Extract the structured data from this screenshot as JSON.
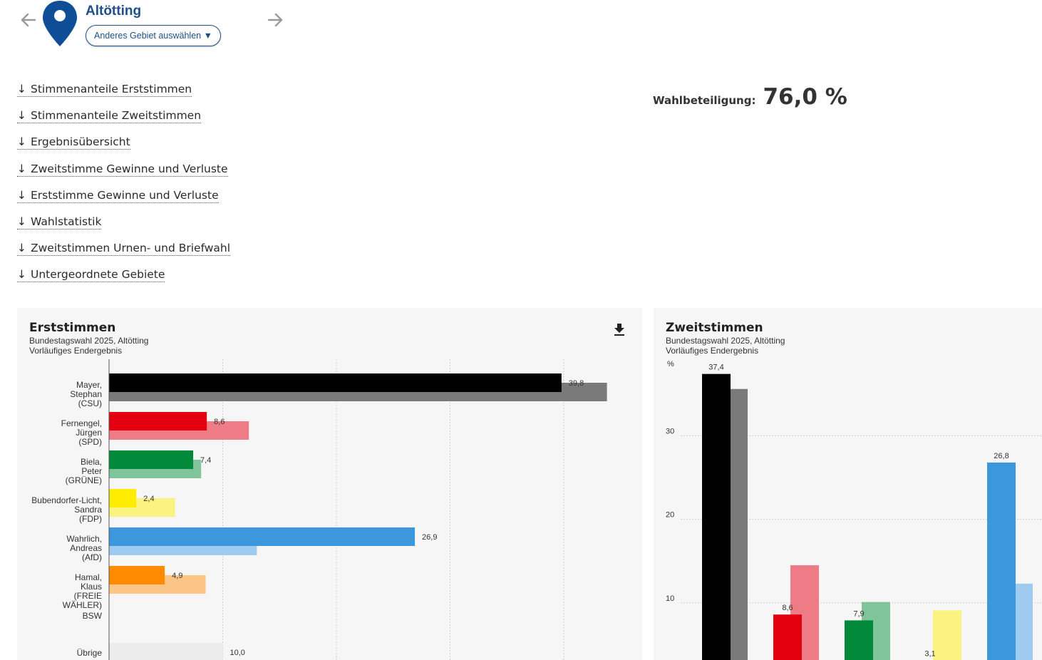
{
  "header": {
    "area_name": "Altötting",
    "select_area_label": "Anderes Gebiet auswählen ▼"
  },
  "jump_links": [
    {
      "arrow": "↓",
      "label": "Stimmenanteile Erststimmen"
    },
    {
      "arrow": "↓",
      "label": "Stimmenanteile Zweitstimmen"
    },
    {
      "arrow": "↓",
      "label": "Ergebnisübersicht"
    },
    {
      "arrow": "↓",
      "label": "Zweitstimme Gewinne und Verluste"
    },
    {
      "arrow": "↓",
      "label": "Erststimme Gewinne und Verluste"
    },
    {
      "arrow": "↓",
      "label": "Wahlstatistik"
    },
    {
      "arrow": "↓",
      "label": "Zweitstimmen Urnen- und Briefwahl"
    },
    {
      "arrow": "↓",
      "label": "Untergeordnete Gebiete"
    }
  ],
  "turnout": {
    "label": "Wahlbeteiligung:",
    "value": "76,0 %"
  },
  "panels": {
    "erst": {
      "title": "Erststimmen",
      "subtitle1": "Bundestagswahl 2025, Altötting",
      "subtitle2": "Vorläufiges Endergebnis"
    },
    "zweit": {
      "title": "Zweitstimmen",
      "subtitle1": "Bundestagswahl 2025, Altötting",
      "subtitle2": "Vorläufiges Endergebnis"
    }
  },
  "chart_data": [
    {
      "type": "bar",
      "orientation": "horizontal",
      "title": "Erststimmen",
      "xlim": [
        0,
        45
      ],
      "grid": true,
      "categories": [
        [
          "Mayer,",
          "Stephan",
          "(CSU)"
        ],
        [
          "Fernengel,",
          "Jürgen",
          "(SPD)"
        ],
        [
          "Biela,",
          "Peter",
          "(GRÜNE)"
        ],
        [
          "Bubendorfer-Licht,",
          "Sandra",
          "(FDP)"
        ],
        [
          "Wahrlich,",
          "Andreas",
          "(AfD)"
        ],
        [
          "Hamal,",
          "Klaus",
          "(FREIE",
          "WÄHLER)"
        ],
        [
          "BSW"
        ],
        [
          "Übrige"
        ]
      ],
      "series": [
        {
          "values": [
            39.8,
            8.6,
            7.4,
            2.4,
            26.9,
            4.9,
            null,
            10.0
          ],
          "labels": [
            "39,8",
            "8,6",
            "7,4",
            "2,4",
            "26,9",
            "4,9",
            "",
            "10,0"
          ],
          "colors": [
            "#000000",
            "#e3000f",
            "#008939",
            "#ffed00",
            "#3c97dd",
            "#ff8c00",
            "#cccccc",
            "#ececec"
          ]
        },
        {
          "values": [
            43.8,
            12.3,
            8.1,
            5.8,
            13.0,
            8.5,
            null,
            null
          ],
          "colors": [
            "#7a7a7a",
            "#ee7b85",
            "#80c49c",
            "#fbf37f",
            "#9ecbef",
            "#fdc585",
            "#dddddd",
            "#f2f2f2"
          ]
        }
      ]
    },
    {
      "type": "bar",
      "orientation": "vertical",
      "title": "Zweitstimmen",
      "ylabel": "%",
      "ylim": [
        0,
        40
      ],
      "yticks": [
        "10",
        "20",
        "30"
      ],
      "grid": true,
      "series": [
        {
          "values": [
            37.4,
            8.6,
            7.9,
            3.1,
            26.8
          ],
          "labels": [
            "37,4",
            "8,6",
            "7,9",
            "3,1",
            "26,8"
          ],
          "colors": [
            "#000000",
            "#e3000f",
            "#008939",
            "#ffed00",
            "#3c97dd"
          ]
        },
        {
          "values": [
            35.6,
            14.5,
            10.1,
            9.1,
            12.3
          ],
          "colors": [
            "#7a7a7a",
            "#ee7b85",
            "#80c49c",
            "#fbf37f",
            "#9ecbef"
          ]
        }
      ]
    }
  ]
}
